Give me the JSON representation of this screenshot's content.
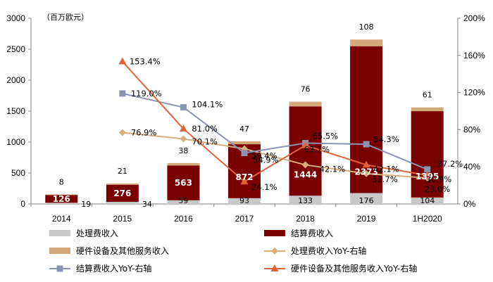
{
  "chart_data": {
    "type": "bar",
    "subtype": "stacked bar with line overlays",
    "unit_label": "（百万欧元）",
    "categories": [
      "2014",
      "2015",
      "2016",
      "2017",
      "2018",
      "2019",
      "1H2020"
    ],
    "left_axis": {
      "min": 0,
      "max": 3000,
      "ticks": [
        "0",
        "500",
        "1000",
        "1500",
        "2000",
        "2500",
        "3000"
      ]
    },
    "right_axis": {
      "min": 0,
      "max": 200,
      "ticks": [
        "0%",
        "40%",
        "80%",
        "120%",
        "160%",
        "200%"
      ]
    },
    "bar_series": [
      {
        "name": "处理费收入",
        "color": "#c8c8c8",
        "values": [
          19,
          34,
          59,
          93,
          133,
          176,
          104
        ]
      },
      {
        "name": "结算费收入",
        "color": "#7a0000",
        "values": [
          126,
          276,
          563,
          872,
          1444,
          2373,
          1395
        ]
      },
      {
        "name": "硬件设备及其他服务收入",
        "color": "#d4a97a",
        "values": [
          8,
          21,
          38,
          47,
          76,
          108,
          61
        ]
      }
    ],
    "line_series": [
      {
        "name": "处理费收入YoY-右轴",
        "color": "#d4b07e",
        "marker": "diamond",
        "values": [
          null,
          76.9,
          70.1,
          59.4,
          42.1,
          32.7,
          28.0
        ],
        "labels": [
          "",
          "76.9%",
          "70.1%",
          "59.4%",
          "42.1%",
          "32.7%",
          "28.0%"
        ]
      },
      {
        "name": "结算费收入YoY-右轴",
        "color": "#8a93b2",
        "marker": "square",
        "values": [
          null,
          119.0,
          104.1,
          54.9,
          65.5,
          64.3,
          37.2
        ],
        "labels": [
          "",
          "119.0%",
          "104.1%",
          "54.9%",
          "65.5%",
          "64.3%",
          "37.2%"
        ]
      },
      {
        "name": "硬件设备及其他服务收入YoY-右轴",
        "color": "#e0623a",
        "marker": "triangle",
        "values": [
          null,
          153.4,
          81.0,
          24.1,
          63.1,
          42.1,
          30.9
        ],
        "labels": [
          "",
          "153.4%",
          "81.0%",
          "24.1%",
          "63.1%",
          "42.1%",
          "30.9%"
        ]
      }
    ],
    "legend": [
      "处理费收入",
      "结算费收入",
      "硬件设备及其他服务收入",
      "处理费收入YoY-右轴",
      "结算费收入YoY-右轴",
      "硬件设备及其他服务收入YoY-右轴"
    ]
  }
}
